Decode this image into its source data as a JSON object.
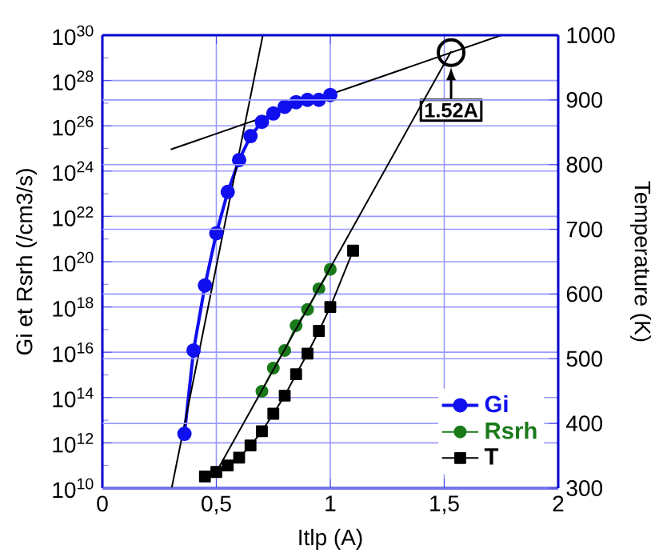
{
  "chart_data": {
    "type": "line",
    "xlabel": "Itlp (A)",
    "ylabel": "Gi et Rsrh (/cm3/s)",
    "y2label": "Temperature (K)",
    "xlim": [
      0,
      2
    ],
    "xticks": [
      0,
      {
        "value": 0.5,
        "label": "0,5"
      },
      1,
      {
        "value": 1.5,
        "label": "1,5"
      },
      2
    ],
    "ylim": [
      10000000000.0,
      1e+30
    ],
    "yticks": [
      {
        "value": 10000000000.0,
        "label": "10$^{10}$"
      },
      {
        "value": 1000000000000.0,
        "label": "10$^{12}$"
      },
      {
        "value": 100000000000000.0,
        "label": "10$^{14}$"
      },
      {
        "value": 1e+16,
        "label": "10$^{16}$"
      },
      {
        "value": 1e+18,
        "label": "10$^{18}$"
      },
      {
        "value": 1e+20,
        "label": "10$^{20}$"
      },
      {
        "value": 1e+22,
        "label": "10$^{22}$"
      },
      {
        "value": 1e+24,
        "label": "10$^{24}$"
      },
      {
        "value": 1e+26,
        "label": "10$^{26}$"
      },
      {
        "value": 1e+28,
        "label": "10$^{28}$"
      },
      {
        "value": 1e+30,
        "label": "10$^{30}$"
      }
    ],
    "y2lim": [
      300,
      1000
    ],
    "y2ticks": [
      300,
      400,
      500,
      600,
      700,
      800,
      900,
      1000
    ],
    "log": "y",
    "grid": true,
    "legend": "bottom right",
    "annotations": [
      {
        "text": "1.52A",
        "x": 1.53,
        "y": 1.7e+29
      }
    ],
    "series": [
      {
        "name": "Gi",
        "color": "#1010ee",
        "marker": "circle",
        "x": [
          0.36,
          0.4,
          0.45,
          0.5,
          0.55,
          0.6,
          0.65,
          0.7,
          0.75,
          0.8,
          0.85,
          0.9,
          0.95,
          1.0
        ],
        "values": [
          2500000000000.0,
          1.2e+16,
          8.9e+18,
          1.8e+21,
          1.2e+23,
          3.1e+24,
          3.5e+25,
          1.5e+26,
          3.5e+26,
          6.9e+26,
          1.1e+27,
          1.4e+27,
          1.4e+27,
          2.3e+27
        ]
      },
      {
        "name": "Rsrh",
        "color": "#1a7a1a",
        "marker": "circle",
        "x": [
          0.7,
          0.75,
          0.8,
          0.85,
          0.9,
          0.95,
          1.0
        ],
        "values": [
          190000000000000.0,
          2000000000000000.0,
          1.2e+16,
          1.5e+17,
          7.8e+17,
          6.3e+18,
          4.6e+19
        ]
      },
      {
        "name": "T",
        "color": "#000000",
        "marker": "square",
        "axis": "y2",
        "x": [
          0.45,
          0.5,
          0.55,
          0.6,
          0.65,
          0.7,
          0.75,
          0.8,
          0.85,
          0.9,
          0.95,
          1.0,
          1.1
        ],
        "values": [
          318,
          325,
          335,
          347,
          366,
          388,
          415,
          443,
          476,
          508,
          543,
          580,
          667
        ]
      },
      {
        "type": "line",
        "color": "#000000",
        "x": [
          0.304,
          0.704
        ],
        "values": [
          10000000000.0,
          1e+30
        ]
      },
      {
        "type": "line",
        "color": "#000000",
        "x": [
          0.3,
          1.75
        ],
        "values": [
          9e+24,
          1e+30
        ]
      },
      {
        "type": "line",
        "color": "#000000",
        "axis": "y2",
        "x": [
          0.5,
          1.53
        ],
        "values": [
          325,
          975
        ]
      }
    ]
  }
}
